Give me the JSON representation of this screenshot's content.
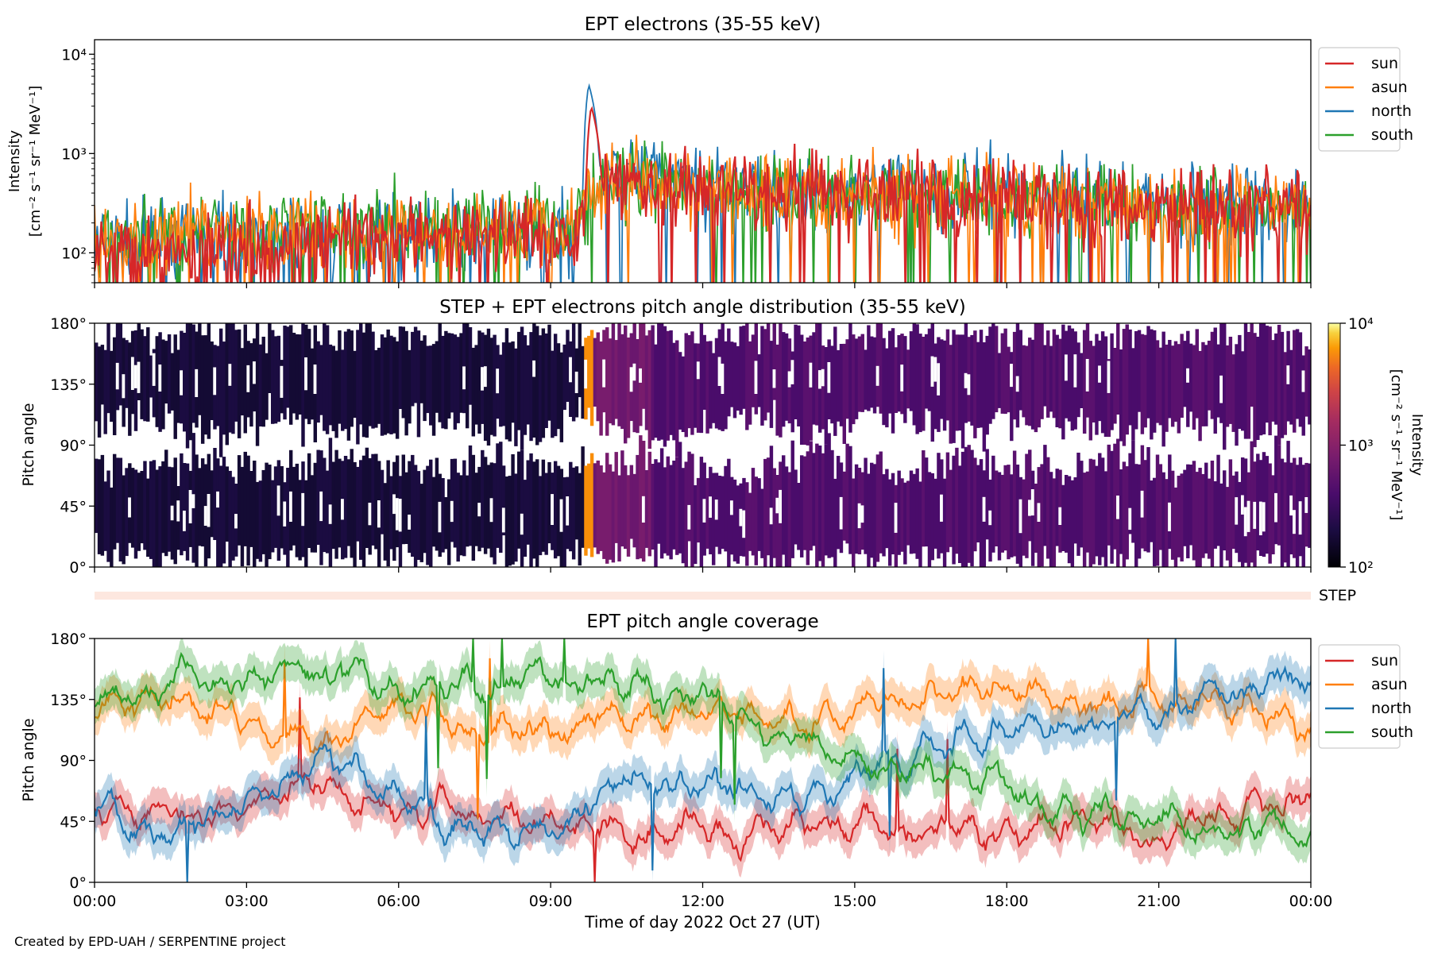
{
  "footer": "Created by EPD-UAH / SERPENTINE project",
  "xlabel": "Time of day 2022 Oct 27 (UT)",
  "colors": {
    "sun": "#d62728",
    "asun": "#ff7f0e",
    "north": "#1f77b4",
    "south": "#2ca02c"
  },
  "chart_data": [
    {
      "type": "line",
      "title": "EPT electrons (35-55 keV)",
      "ylabel_line1": "Intensity",
      "ylabel_line2": "[cm⁻² s⁻¹ sr⁻¹ MeV⁻¹]",
      "yscale": "log",
      "ylim": [
        50,
        14000
      ],
      "yticks": [
        {
          "value": 100,
          "label": "10²"
        },
        {
          "value": 1000,
          "label": "10³"
        },
        {
          "value": 10000,
          "label": "10⁴"
        }
      ],
      "xlim_hours": [
        0,
        24
      ],
      "legend_position": "outside-right",
      "series": [
        {
          "name": "sun",
          "base": [
            [
              0,
              110
            ],
            [
              3,
              120
            ],
            [
              6,
              140
            ],
            [
              9.5,
              150
            ],
            [
              10,
              600
            ],
            [
              12,
              400
            ],
            [
              15,
              380
            ],
            [
              18,
              360
            ],
            [
              21,
              300
            ],
            [
              24,
              260
            ]
          ],
          "event_peak": {
            "time": "09:48",
            "value": 3000
          }
        },
        {
          "name": "asun",
          "base": [
            [
              0,
              130
            ],
            [
              3,
              160
            ],
            [
              6,
              170
            ],
            [
              9.5,
              180
            ],
            [
              10,
              500
            ],
            [
              12,
              420
            ],
            [
              15,
              380
            ],
            [
              18,
              340
            ],
            [
              21,
              300
            ],
            [
              24,
              300
            ]
          ]
        },
        {
          "name": "north",
          "base": [
            [
              0,
              120
            ],
            [
              3,
              140
            ],
            [
              6,
              160
            ],
            [
              9.5,
              160
            ],
            [
              10,
              700
            ],
            [
              12,
              500
            ],
            [
              15,
              420
            ],
            [
              18,
              400
            ],
            [
              21,
              320
            ],
            [
              24,
              300
            ]
          ],
          "event_peak": {
            "time": "09:45",
            "value": 5000
          }
        },
        {
          "name": "south",
          "base": [
            [
              0,
              140
            ],
            [
              3,
              180
            ],
            [
              6,
              190
            ],
            [
              9.5,
              190
            ],
            [
              10,
              480
            ],
            [
              12,
              450
            ],
            [
              15,
              400
            ],
            [
              18,
              380
            ],
            [
              21,
              320
            ],
            [
              24,
              300
            ]
          ]
        }
      ]
    },
    {
      "type": "heatmap",
      "title": "STEP + EPT electrons pitch angle distribution (35-55 keV)",
      "ylabel": "Pitch angle",
      "ylim": [
        0,
        180
      ],
      "yticks": [
        "0°",
        "45°",
        "90°",
        "135°",
        "180°"
      ],
      "colorbar": {
        "label_line1": "Intensity",
        "label_line2": "[cm⁻² s⁻¹ sr⁻¹ MeV⁻¹]",
        "scale": "log",
        "range": [
          100,
          10000
        ],
        "ticks": [
          "10²",
          "10³",
          "10⁴"
        ],
        "colormap": "inferno"
      },
      "step_row_label": "STEP"
    },
    {
      "type": "line",
      "title": "EPT pitch angle coverage",
      "ylabel": "Pitch angle",
      "ylim": [
        0,
        180
      ],
      "yticks": [
        "0°",
        "45°",
        "90°",
        "135°",
        "180°"
      ],
      "xticks": [
        "00:00",
        "03:00",
        "06:00",
        "09:00",
        "12:00",
        "15:00",
        "18:00",
        "21:00",
        "00:00"
      ],
      "legend_position": "outside-right",
      "series": [
        {
          "name": "sun",
          "mean": [
            [
              0,
              50
            ],
            [
              3,
              55
            ],
            [
              4.5,
              70
            ],
            [
              6,
              50
            ],
            [
              7.5,
              55
            ],
            [
              9,
              45
            ],
            [
              10.5,
              40
            ],
            [
              12,
              35
            ],
            [
              13.5,
              40
            ],
            [
              15,
              45
            ],
            [
              16.5,
              40
            ],
            [
              18,
              35
            ],
            [
              19.5,
              40
            ],
            [
              21,
              35
            ],
            [
              22.5,
              55
            ],
            [
              24,
              65
            ]
          ]
        },
        {
          "name": "asun",
          "mean": [
            [
              0,
              130
            ],
            [
              1.5,
              140
            ],
            [
              3,
              120
            ],
            [
              4.5,
              100
            ],
            [
              6,
              130
            ],
            [
              7.5,
              110
            ],
            [
              9,
              115
            ],
            [
              10.5,
              120
            ],
            [
              12,
              130
            ],
            [
              13.5,
              120
            ],
            [
              15,
              125
            ],
            [
              16.5,
              140
            ],
            [
              18,
              145
            ],
            [
              19.5,
              130
            ],
            [
              21,
              140
            ],
            [
              22.5,
              130
            ],
            [
              24,
              115
            ]
          ]
        },
        {
          "name": "north",
          "mean": [
            [
              0,
              55
            ],
            [
              1.5,
              30
            ],
            [
              3,
              60
            ],
            [
              4.5,
              90
            ],
            [
              6,
              60
            ],
            [
              7.5,
              40
            ],
            [
              9,
              45
            ],
            [
              10.5,
              75
            ],
            [
              12,
              70
            ],
            [
              13.5,
              55
            ],
            [
              15,
              80
            ],
            [
              16.5,
              105
            ],
            [
              18,
              110
            ],
            [
              19.5,
              115
            ],
            [
              21,
              125
            ],
            [
              22.5,
              140
            ],
            [
              24,
              145
            ]
          ]
        },
        {
          "name": "south",
          "mean": [
            [
              0,
              130
            ],
            [
              1.5,
              145
            ],
            [
              3,
              150
            ],
            [
              4.5,
              160
            ],
            [
              6,
              140
            ],
            [
              7.5,
              150
            ],
            [
              9,
              155
            ],
            [
              10.5,
              145
            ],
            [
              12,
              140
            ],
            [
              13.5,
              110
            ],
            [
              15,
              95
            ],
            [
              16.5,
              80
            ],
            [
              18,
              70
            ],
            [
              19.5,
              55
            ],
            [
              21,
              45
            ],
            [
              22.5,
              40
            ],
            [
              24,
              35
            ]
          ]
        }
      ]
    }
  ]
}
